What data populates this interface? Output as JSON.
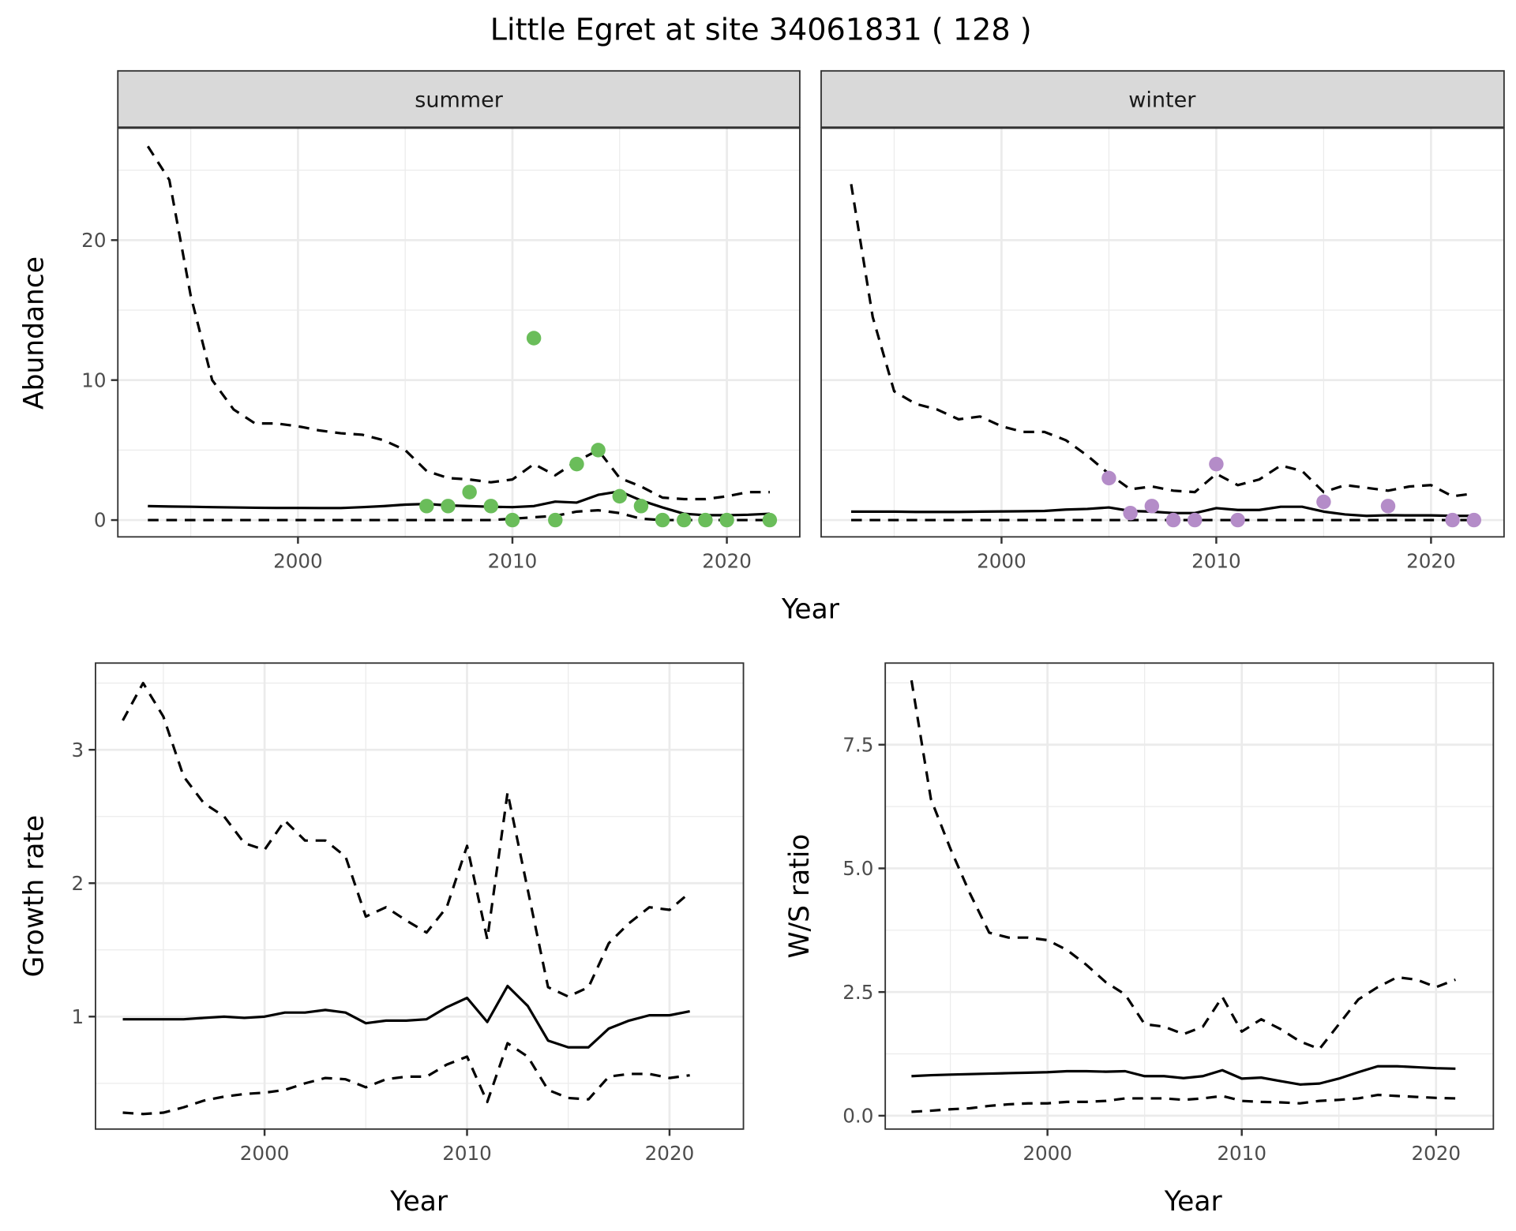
{
  "title": "Little Egret at site 34061831 ( 128 )",
  "colors": {
    "summer_points": "#6abd5a",
    "winter_points": "#b48cc8",
    "lines": "#000000",
    "grid": "#ebebeb",
    "strip": "#d9d9d9"
  },
  "chart_data": [
    {
      "type": "line",
      "facet": "summer",
      "xlabel": "Year",
      "ylabel": "Abundance",
      "xlim": [
        1991.6,
        2023.4
      ],
      "ylim": [
        -1.2,
        28
      ],
      "xticks": [
        2000,
        2010,
        2020
      ],
      "yticks": [
        0,
        10,
        20
      ],
      "grid": true,
      "x": [
        1993,
        1994,
        1995,
        1996,
        1997,
        1998,
        1999,
        2000,
        2001,
        2002,
        2003,
        2004,
        2005,
        2006,
        2007,
        2008,
        2009,
        2010,
        2011,
        2012,
        2013,
        2014,
        2015,
        2016,
        2017,
        2018,
        2019,
        2020,
        2021,
        2022
      ],
      "series": [
        {
          "style": "dashed",
          "values": [
            26.7,
            24.3,
            16,
            10,
            7.9,
            6.9,
            6.9,
            6.7,
            6.4,
            6.2,
            6.1,
            5.7,
            5.0,
            3.5,
            3.0,
            2.9,
            2.7,
            2.9,
            4.0,
            3.2,
            4.2,
            5.0,
            3.0,
            2.4,
            1.6,
            1.5,
            1.5,
            1.7,
            2.0,
            2.0
          ]
        },
        {
          "style": "solid",
          "values": [
            1.0,
            0.97,
            0.95,
            0.92,
            0.9,
            0.88,
            0.87,
            0.87,
            0.86,
            0.86,
            0.92,
            1.0,
            1.1,
            1.15,
            1.05,
            1.0,
            0.95,
            0.92,
            1.0,
            1.32,
            1.25,
            1.8,
            2.05,
            1.4,
            0.9,
            0.45,
            0.35,
            0.35,
            0.38,
            0.45
          ]
        },
        {
          "style": "dashed",
          "values": [
            0,
            0,
            0,
            0,
            0,
            0,
            0,
            0,
            0,
            0,
            0,
            0,
            0,
            0,
            0,
            0,
            0,
            0.1,
            0.2,
            0.3,
            0.6,
            0.7,
            0.5,
            0.1,
            0,
            0,
            0,
            0,
            0,
            0
          ]
        }
      ],
      "points": {
        "x": [
          2006,
          2007,
          2008,
          2009,
          2010,
          2011,
          2012,
          2013,
          2014,
          2015,
          2016,
          2017,
          2018,
          2019,
          2020,
          2022
        ],
        "y": [
          1,
          1,
          2,
          1,
          0,
          13,
          0,
          4,
          5,
          1.7,
          1,
          0,
          0,
          0,
          0,
          0
        ]
      }
    },
    {
      "type": "line",
      "facet": "winter",
      "xlabel": "Year",
      "ylabel": "Abundance",
      "xlim": [
        1991.6,
        2023.4
      ],
      "ylim": [
        -1.2,
        28
      ],
      "xticks": [
        2000,
        2010,
        2020
      ],
      "yticks": [
        0,
        10,
        20
      ],
      "grid": true,
      "x": [
        1993,
        1994,
        1995,
        1996,
        1997,
        1998,
        1999,
        2000,
        2001,
        2002,
        2003,
        2004,
        2005,
        2006,
        2007,
        2008,
        2009,
        2010,
        2011,
        2012,
        2013,
        2014,
        2015,
        2016,
        2017,
        2018,
        2019,
        2020,
        2021,
        2022
      ],
      "series": [
        {
          "style": "dashed",
          "values": [
            24,
            14.5,
            9.2,
            8.3,
            7.9,
            7.2,
            7.4,
            6.7,
            6.3,
            6.3,
            5.7,
            4.6,
            3.3,
            2.2,
            2.4,
            2.1,
            2.0,
            3.3,
            2.5,
            2.9,
            3.9,
            3.5,
            2.0,
            2.5,
            2.3,
            2.1,
            2.4,
            2.5,
            1.7,
            1.9
          ]
        },
        {
          "style": "solid",
          "values": [
            0.6,
            0.6,
            0.6,
            0.58,
            0.58,
            0.58,
            0.6,
            0.62,
            0.63,
            0.65,
            0.75,
            0.8,
            0.9,
            0.65,
            0.6,
            0.5,
            0.5,
            0.85,
            0.72,
            0.72,
            0.95,
            0.95,
            0.6,
            0.4,
            0.3,
            0.35,
            0.33,
            0.33,
            0.3,
            0.3
          ]
        },
        {
          "style": "dashed",
          "values": [
            0,
            0,
            0,
            0,
            0,
            0,
            0,
            0,
            0,
            0,
            0,
            0,
            0,
            0,
            0,
            0,
            0,
            0,
            0,
            0,
            0,
            0,
            0,
            0,
            0,
            0,
            0,
            0,
            0,
            0
          ]
        }
      ],
      "points": {
        "x": [
          2005,
          2006,
          2007,
          2008,
          2009,
          2010,
          2011,
          2015,
          2018,
          2021,
          2022
        ],
        "y": [
          3,
          0.5,
          1,
          0,
          0,
          4,
          0,
          1.3,
          1,
          0,
          0
        ]
      }
    },
    {
      "type": "line",
      "xlabel": "Year",
      "ylabel": "Growth rate",
      "xlim": [
        1991.65,
        2023.65
      ],
      "ylim": [
        0.157,
        3.65
      ],
      "xticks": [
        2000,
        2010,
        2020
      ],
      "yticks": [
        1,
        2,
        3
      ],
      "grid": true,
      "x": [
        1993,
        1994,
        1995,
        1996,
        1997,
        1998,
        1999,
        2000,
        2001,
        2002,
        2003,
        2004,
        2005,
        2006,
        2007,
        2008,
        2009,
        2010,
        2011,
        2012,
        2013,
        2014,
        2015,
        2016,
        2017,
        2018,
        2019,
        2020,
        2021
      ],
      "series": [
        {
          "style": "dashed",
          "values": [
            3.22,
            3.5,
            3.25,
            2.8,
            2.6,
            2.5,
            2.3,
            2.25,
            2.47,
            2.32,
            2.32,
            2.2,
            1.75,
            1.82,
            1.72,
            1.63,
            1.82,
            2.28,
            1.58,
            2.68,
            1.95,
            1.22,
            1.15,
            1.22,
            1.55,
            1.7,
            1.82,
            1.8,
            1.93
          ]
        },
        {
          "style": "solid",
          "values": [
            0.98,
            0.98,
            0.98,
            0.98,
            0.99,
            1.0,
            0.99,
            1.0,
            1.03,
            1.03,
            1.05,
            1.03,
            0.95,
            0.97,
            0.97,
            0.98,
            1.07,
            1.14,
            0.96,
            1.23,
            1.08,
            0.82,
            0.77,
            0.77,
            0.91,
            0.97,
            1.01,
            1.01,
            1.04
          ]
        },
        {
          "style": "dashed",
          "values": [
            0.28,
            0.27,
            0.28,
            0.32,
            0.37,
            0.4,
            0.42,
            0.43,
            0.45,
            0.5,
            0.54,
            0.53,
            0.47,
            0.53,
            0.55,
            0.55,
            0.64,
            0.7,
            0.36,
            0.8,
            0.7,
            0.45,
            0.39,
            0.38,
            0.55,
            0.57,
            0.57,
            0.54,
            0.56
          ]
        }
      ]
    },
    {
      "type": "line",
      "xlabel": "Year",
      "ylabel": "W/S ratio",
      "xlim": [
        1991.65,
        2022.95
      ],
      "ylim": [
        -0.27,
        9.15
      ],
      "xticks": [
        2000,
        2010,
        2020
      ],
      "yticks": [
        0.0,
        2.5,
        5.0,
        7.5
      ],
      "ytick_labels": [
        "0.0",
        "2.5",
        "5.0",
        "7.5"
      ],
      "grid": true,
      "x": [
        1993,
        1994,
        1995,
        1996,
        1997,
        1998,
        1999,
        2000,
        2001,
        2002,
        2003,
        2004,
        2005,
        2006,
        2007,
        2008,
        2009,
        2010,
        2011,
        2012,
        2013,
        2014,
        2015,
        2016,
        2017,
        2018,
        2019,
        2020,
        2021
      ],
      "series": [
        {
          "style": "dashed",
          "values": [
            8.8,
            6.4,
            5.4,
            4.5,
            3.7,
            3.6,
            3.6,
            3.55,
            3.35,
            3.05,
            2.7,
            2.45,
            1.85,
            1.8,
            1.65,
            1.8,
            2.4,
            1.7,
            1.95,
            1.75,
            1.5,
            1.35,
            1.85,
            2.35,
            2.6,
            2.8,
            2.75,
            2.6,
            2.75
          ]
        },
        {
          "style": "solid",
          "values": [
            0.8,
            0.82,
            0.83,
            0.84,
            0.85,
            0.86,
            0.87,
            0.88,
            0.9,
            0.9,
            0.89,
            0.9,
            0.8,
            0.8,
            0.76,
            0.8,
            0.92,
            0.75,
            0.77,
            0.7,
            0.63,
            0.65,
            0.75,
            0.88,
            1.0,
            1.0,
            0.98,
            0.96,
            0.95
          ]
        },
        {
          "style": "dashed",
          "values": [
            0.08,
            0.1,
            0.13,
            0.15,
            0.2,
            0.23,
            0.25,
            0.25,
            0.28,
            0.28,
            0.3,
            0.35,
            0.35,
            0.35,
            0.32,
            0.35,
            0.4,
            0.3,
            0.28,
            0.27,
            0.25,
            0.3,
            0.32,
            0.35,
            0.42,
            0.4,
            0.38,
            0.36,
            0.35
          ]
        }
      ]
    }
  ]
}
